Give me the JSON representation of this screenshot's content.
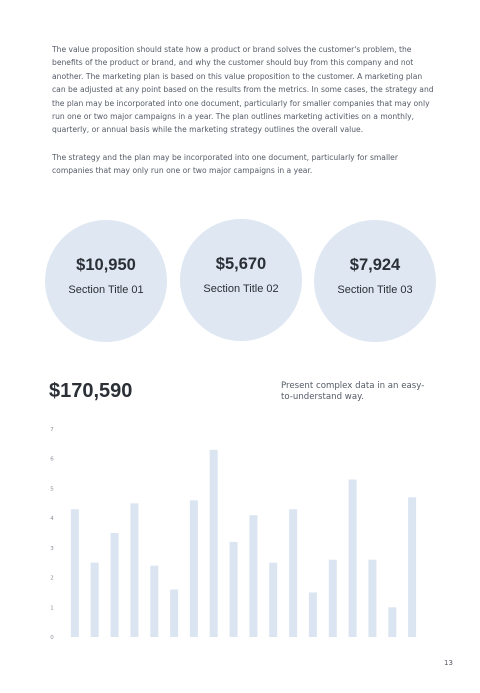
{
  "text": {
    "paragraph1": "The value proposition should state how a product or brand solves the customer's problem, the benefits of the product or brand, and why the customer should buy from this company and not another. The marketing plan is based on this value proposition to the customer. A marketing plan can be adjusted at any point based on the results from the metrics. In some cases, the strategy and the plan may be incorporated into one document, particularly for smaller companies that may only run one or two major campaigns in a year. The plan outlines marketing activities on a monthly, quarterly, or annual basis while the marketing strategy outlines the overall value.",
    "paragraph2": "The strategy and the plan may be incorporated into one document, particularly for smaller companies that may only run one or two major campaigns in a year."
  },
  "stats": [
    {
      "value": "$10,950",
      "label": "Section Title 01"
    },
    {
      "value": "$5,670",
      "label": "Section Title 02"
    },
    {
      "value": "$7,924",
      "label": "Section Title 03"
    }
  ],
  "summary": {
    "value": "$170,590",
    "note": "Present complex data in an easy-to-understand way."
  },
  "chart_data": {
    "type": "bar",
    "values": [
      4.3,
      2.5,
      3.5,
      4.5,
      2.4,
      1.6,
      4.6,
      6.3,
      3.2,
      4.1,
      2.5,
      4.3,
      1.5,
      2.6,
      5.3,
      2.6,
      1.0,
      4.7
    ],
    "ylim": [
      0,
      7
    ],
    "yticks": [
      "0",
      "1",
      "2",
      "3",
      "4",
      "5",
      "6",
      "7"
    ],
    "bar_color": "#dbe5f1",
    "grid": false
  },
  "colors": {
    "circle": "#dfe7f2",
    "heading": "#2b2f36",
    "body": "#545a66"
  },
  "page_number": "13"
}
